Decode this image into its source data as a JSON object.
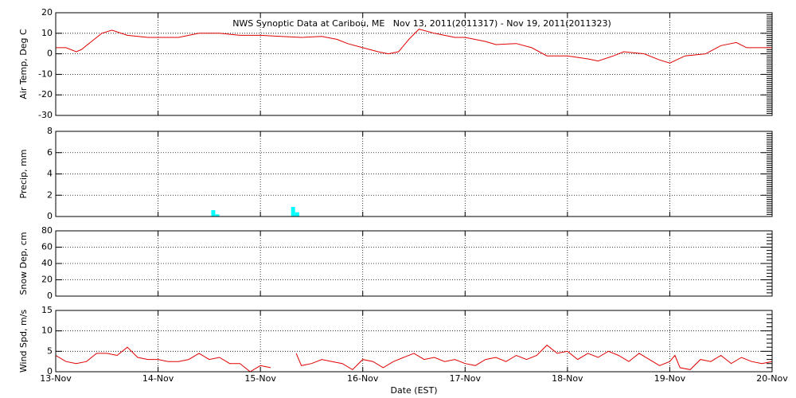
{
  "chart_data": [
    {
      "type": "line",
      "title": "NWS Synoptic Data at Caribou, ME   Nov 13, 2011(2011317) - Nov 19, 2011(2011323)",
      "ylabel": "Air Temp, Deg C",
      "ylim": [
        -30,
        20
      ],
      "yticks": [
        -30,
        -20,
        -10,
        0,
        10,
        20
      ],
      "grid": true,
      "series": [
        {
          "name": "Air Temp",
          "color": "#e00000",
          "x": [
            13.0,
            13.1,
            13.2,
            13.25,
            13.35,
            13.45,
            13.55,
            13.7,
            13.9,
            14.0,
            14.2,
            14.4,
            14.6,
            14.8,
            15.0,
            15.2,
            15.4,
            15.6,
            15.75,
            15.85,
            16.0,
            16.15,
            16.25,
            16.35,
            16.45,
            16.55,
            16.7,
            16.9,
            17.0,
            17.2,
            17.3,
            17.5,
            17.65,
            17.8,
            18.0,
            18.2,
            18.3,
            18.45,
            18.55,
            18.75,
            18.9,
            19.0,
            19.15,
            19.35,
            19.5,
            19.65,
            19.75,
            19.9,
            20.0
          ],
          "values": [
            3,
            3,
            1,
            2,
            6,
            10,
            11.5,
            9,
            8,
            8,
            8,
            10,
            10,
            9,
            9,
            8.5,
            8,
            8.5,
            7,
            5,
            3,
            1,
            0,
            1,
            7,
            12,
            10,
            8,
            8,
            6,
            4.5,
            5,
            3,
            -1,
            -1,
            -2.5,
            -3.5,
            -1,
            1,
            0,
            -3,
            -4.5,
            -1,
            0,
            4,
            5.5,
            3,
            3,
            3
          ]
        }
      ]
    },
    {
      "type": "bar",
      "ylabel": "Precip, mm",
      "ylim": [
        0,
        8
      ],
      "yticks": [
        0,
        2,
        4,
        6,
        8
      ],
      "grid": true,
      "series": [
        {
          "name": "Precip",
          "color": "#00ffff",
          "x": [
            14.52,
            14.56,
            15.3,
            15.34
          ],
          "values": [
            0.6,
            0.2,
            0.9,
            0.4
          ]
        }
      ]
    },
    {
      "type": "line",
      "ylabel": "Snow Dep, cm",
      "ylim": [
        0,
        80
      ],
      "yticks": [
        0,
        20,
        40,
        60,
        80
      ],
      "grid": true,
      "series": []
    },
    {
      "type": "line",
      "ylabel": "Wind Spd, m/s",
      "xlabel": "Date (EST)",
      "xlim": [
        13,
        20
      ],
      "xticks": [
        {
          "value": 13,
          "label": "13-Nov"
        },
        {
          "value": 14,
          "label": "14-Nov"
        },
        {
          "value": 15,
          "label": "15-Nov"
        },
        {
          "value": 16,
          "label": "16-Nov"
        },
        {
          "value": 17,
          "label": "17-Nov"
        },
        {
          "value": 18,
          "label": "18-Nov"
        },
        {
          "value": 19,
          "label": "19-Nov"
        },
        {
          "value": 20,
          "label": "20-Nov"
        }
      ],
      "ylim": [
        0,
        15
      ],
      "yticks": [
        0,
        5,
        10,
        15
      ],
      "grid": true,
      "series": [
        {
          "name": "Wind Spd",
          "color": "#e00000",
          "x": [
            13.0,
            13.1,
            13.2,
            13.3,
            13.4,
            13.5,
            13.6,
            13.7,
            13.8,
            13.9,
            14.0,
            14.1,
            14.2,
            14.3,
            14.4,
            14.5,
            14.6,
            14.7,
            14.8,
            14.9,
            15.0,
            15.1,
            15.2,
            15.3,
            15.35,
            15.4,
            15.5,
            15.6,
            15.7,
            15.8,
            15.9,
            16.0,
            16.1,
            16.2,
            16.3,
            16.4,
            16.5,
            16.6,
            16.7,
            16.8,
            16.9,
            17.0,
            17.1,
            17.2,
            17.3,
            17.4,
            17.5,
            17.6,
            17.7,
            17.8,
            17.9,
            18.0,
            18.1,
            18.2,
            18.3,
            18.4,
            18.5,
            18.6,
            18.7,
            18.8,
            18.9,
            19.0,
            19.05,
            19.1,
            19.2,
            19.3,
            19.4,
            19.5,
            19.6,
            19.7,
            19.8,
            19.9,
            20.0
          ],
          "values": [
            4,
            2.5,
            2,
            2.5,
            4.5,
            4.5,
            4,
            6,
            3.5,
            3,
            3,
            2.5,
            2.5,
            3,
            4.5,
            3,
            3.5,
            2,
            2,
            0,
            1.5,
            1,
            null,
            null,
            4.5,
            1.5,
            2,
            3,
            2.5,
            2,
            0.5,
            3,
            2.5,
            1,
            2.5,
            3.5,
            4.5,
            3,
            3.5,
            2.5,
            3,
            2,
            1.5,
            3,
            3.5,
            2.5,
            4,
            3,
            4,
            6.5,
            4.5,
            5,
            3,
            4.5,
            3.5,
            5,
            4,
            2.5,
            4.5,
            3,
            1.5,
            2.5,
            4,
            1,
            0.5,
            3,
            2.5,
            4,
            2,
            3.5,
            2.5,
            2,
            2.5
          ]
        }
      ]
    }
  ]
}
